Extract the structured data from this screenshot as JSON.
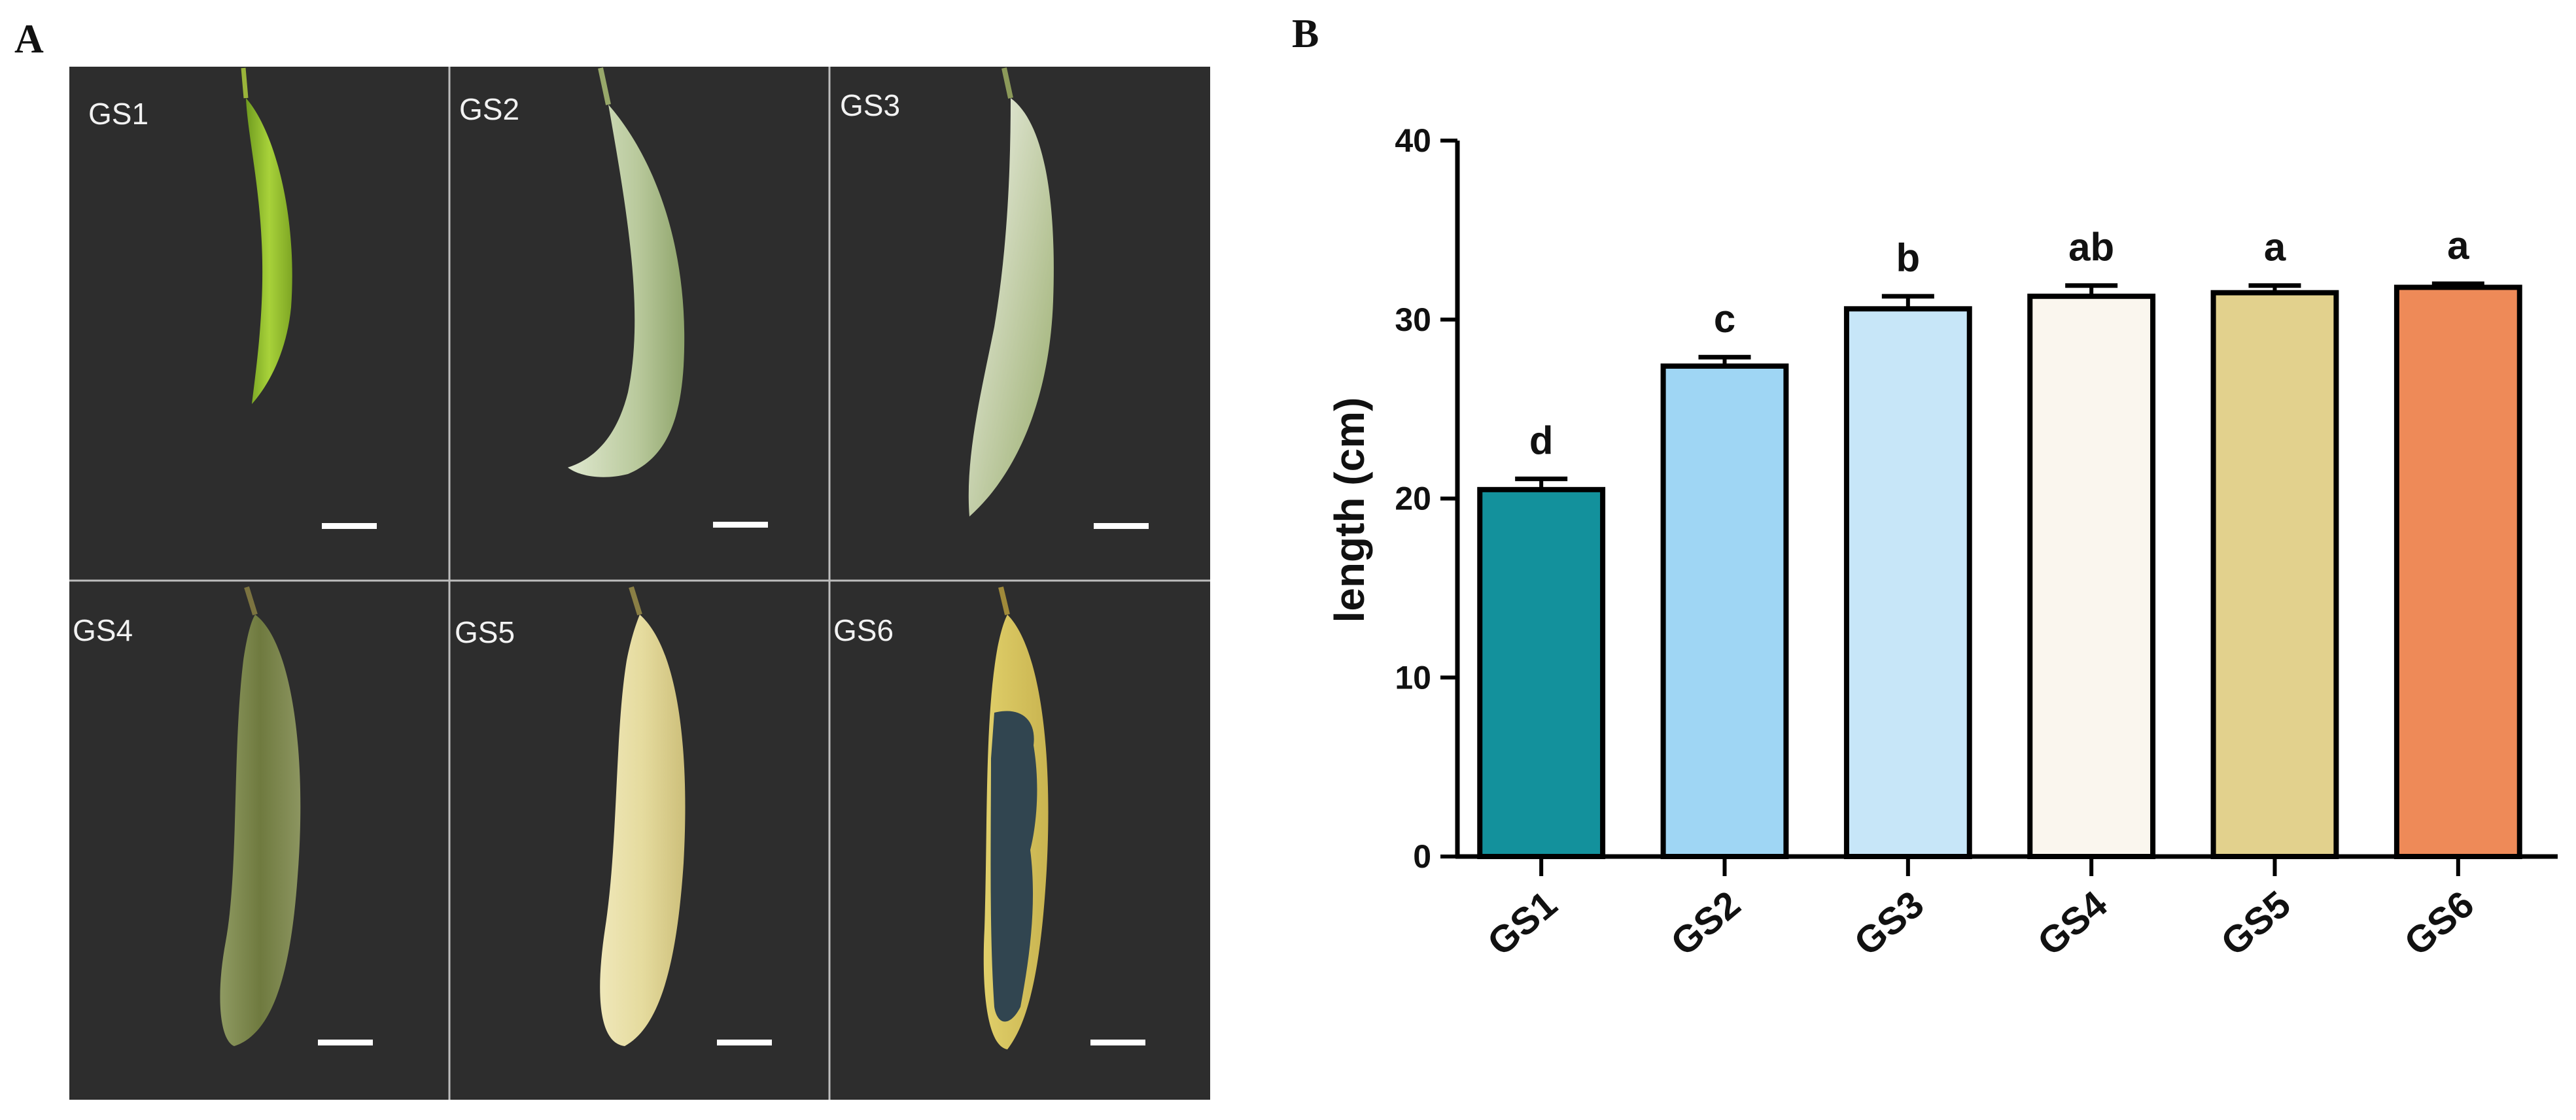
{
  "figure": {
    "panel_a_letter": "A",
    "panel_b_letter": "B"
  },
  "photos": [
    {
      "label": "GS1",
      "pod": "young-green"
    },
    {
      "label": "GS2",
      "pod": "pale-green"
    },
    {
      "label": "GS3",
      "pod": "whitish-green"
    },
    {
      "label": "GS4",
      "pod": "mottled-olive"
    },
    {
      "label": "GS5",
      "pod": "cream-yellow"
    },
    {
      "label": "GS6",
      "pod": "dry-with-seeds"
    }
  ],
  "colors": {
    "photo_bg": "#2d2d2d",
    "bars": [
      "#13919c",
      "#9fd6f4",
      "#c7e6f8",
      "#faf6ee",
      "#e2d18d",
      "#ee8a58"
    ]
  },
  "chart_data": {
    "type": "bar",
    "title": "",
    "xlabel": "",
    "ylabel": "length (cm)",
    "categories": [
      "GS1",
      "GS2",
      "GS3",
      "GS4",
      "GS5",
      "GS6"
    ],
    "values": [
      20.5,
      27.4,
      30.6,
      31.3,
      31.5,
      31.8
    ],
    "errors": [
      0.6,
      0.5,
      0.7,
      0.6,
      0.4,
      0.2
    ],
    "significance": [
      "d",
      "c",
      "b",
      "ab",
      "a",
      "a"
    ],
    "ylim": [
      0,
      40
    ],
    "yticks": [
      0,
      10,
      20,
      30,
      40
    ],
    "grid": false
  }
}
